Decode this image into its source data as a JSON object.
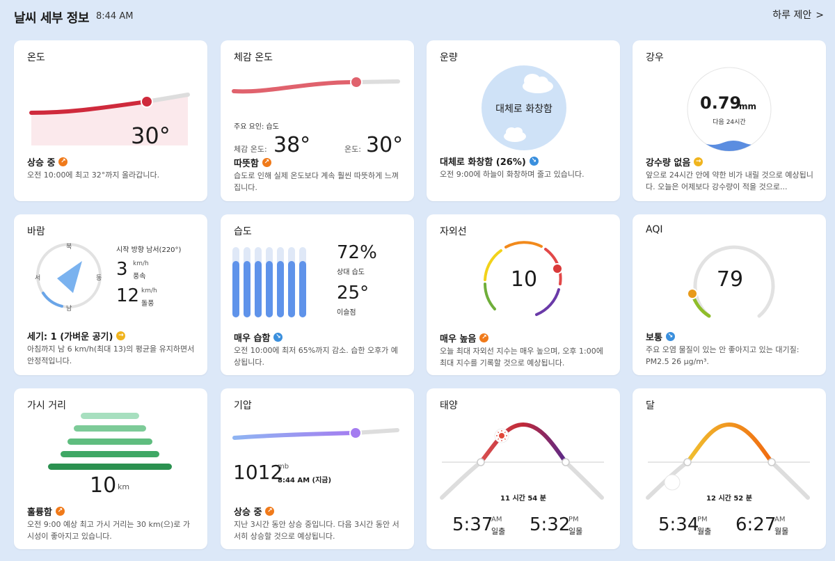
{
  "header": {
    "title": "날씨 세부 정보",
    "time": "8:44 AM",
    "daily_link": "하루 제안",
    "chevron": ">"
  },
  "temperature": {
    "title": "온도",
    "value": "30°",
    "status": "상승 중",
    "description": "오전 10:00에 최고 32°까지 올라갑니다."
  },
  "feels_like": {
    "title": "체감 온도",
    "factor": "주요 요인: 습도",
    "feels_label": "체감 온도:",
    "feels_value": "38°",
    "temp_label": "온도:",
    "temp_value": "30°",
    "status": "따뜻함",
    "description": "습도로 인해 실제 온도보다 계속 훨씬 따뜻하게 느껴집니다."
  },
  "cloud": {
    "title": "운량",
    "circle_text": "대체로 화창함",
    "status": "대체로 화창함 (26%)",
    "description": "오전 9:00에 하늘이 화창하며 줄고 있습니다."
  },
  "rain": {
    "title": "강우",
    "amount": "0.79",
    "unit": "mm",
    "period": "다음 24시간",
    "status": "강수량 없음",
    "description": "앞으로 24시간 안에 약한 비가 내릴 것으로 예상됩니다. 오늘은 어제보다 강수량이 적을 것으로..."
  },
  "wind": {
    "title": "바람",
    "direction_text": "시작 방향 남서(220°)",
    "speed": "3",
    "speed_unit": "km/h",
    "speed_label": "풍속",
    "gust": "12",
    "gust_unit": "km/h",
    "gust_label": "돌풍",
    "compass": {
      "n": "북",
      "e": "동",
      "s": "남",
      "w": "서"
    },
    "status": "세기: 1 (가벼운 공기)",
    "description": "아침까지 남 6 km/h(최대 13)의 평균을 유지하면서 안정적입니다."
  },
  "humidity": {
    "title": "습도",
    "relative": "72%",
    "relative_label": "상대 습도",
    "dew": "25°",
    "dew_label": "이슬점",
    "status": "매우 습함",
    "description": "오전 10:00에 최저 65%까지 감소. 습한 오후가 예상됩니다."
  },
  "uv": {
    "title": "자외선",
    "value": "10",
    "status": "매우 높음",
    "description": "오늘 최대 자외선 지수는 매우 높으며, 오후 1:00에 최대 지수를 기록할 것으로 예상됩니다."
  },
  "aqi": {
    "title": "AQI",
    "value": "79",
    "status": "보통",
    "description": "주요 오염 물질이 있는 안 좋아지고 있는 대기질: PM2.5 26 µg/m³."
  },
  "visibility": {
    "title": "가시 거리",
    "value": "10",
    "unit": "km",
    "status": "훌륭함",
    "description": "오전 9:00 예상 최고 가시 거리는 30 km(으)로 가시성이 좋아지고 있습니다."
  },
  "pressure": {
    "title": "기압",
    "value": "1012",
    "unit": "mb",
    "time": "8:44 AM (지금)",
    "status": "상승 중",
    "description": "지난 3시간 동안 상승 중입니다. 다음 3시간 동안 서서히 상승할 것으로 예상됩니다."
  },
  "sun": {
    "title": "태양",
    "duration": "11 시간 54 분",
    "rise_time": "5:37",
    "rise_ampm": "AM",
    "rise_label": "일출",
    "set_time": "5:32",
    "set_ampm": "PM",
    "set_label": "일몰"
  },
  "moon": {
    "title": "달",
    "duration": "12 시간 52 분",
    "rise_time": "5:34",
    "rise_ampm": "PM",
    "rise_label": "월출",
    "set_time": "6:27",
    "set_ampm": "AM",
    "set_label": "월몰"
  }
}
